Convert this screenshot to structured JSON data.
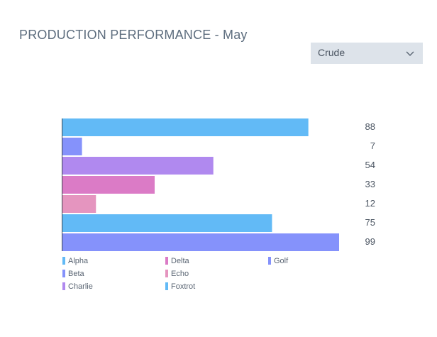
{
  "title": "PRODUCTION PERFORMANCE - May",
  "dropdown": {
    "selected": "Crude",
    "icon": "chevron-down-icon"
  },
  "chart_data": {
    "type": "bar",
    "orientation": "horizontal",
    "categories": [
      "Alpha",
      "Beta",
      "Charlie",
      "Delta",
      "Echo",
      "Foxtrot",
      "Golf"
    ],
    "values": [
      88,
      7,
      54,
      33,
      12,
      75,
      99
    ],
    "colors": [
      "#62baf6",
      "#8592fb",
      "#b089ef",
      "#db7bc6",
      "#e595bf",
      "#62baf6",
      "#8592fb"
    ],
    "xlim": [
      0,
      99
    ],
    "grid": false,
    "data_labels": true,
    "legend_position": "bottom"
  }
}
